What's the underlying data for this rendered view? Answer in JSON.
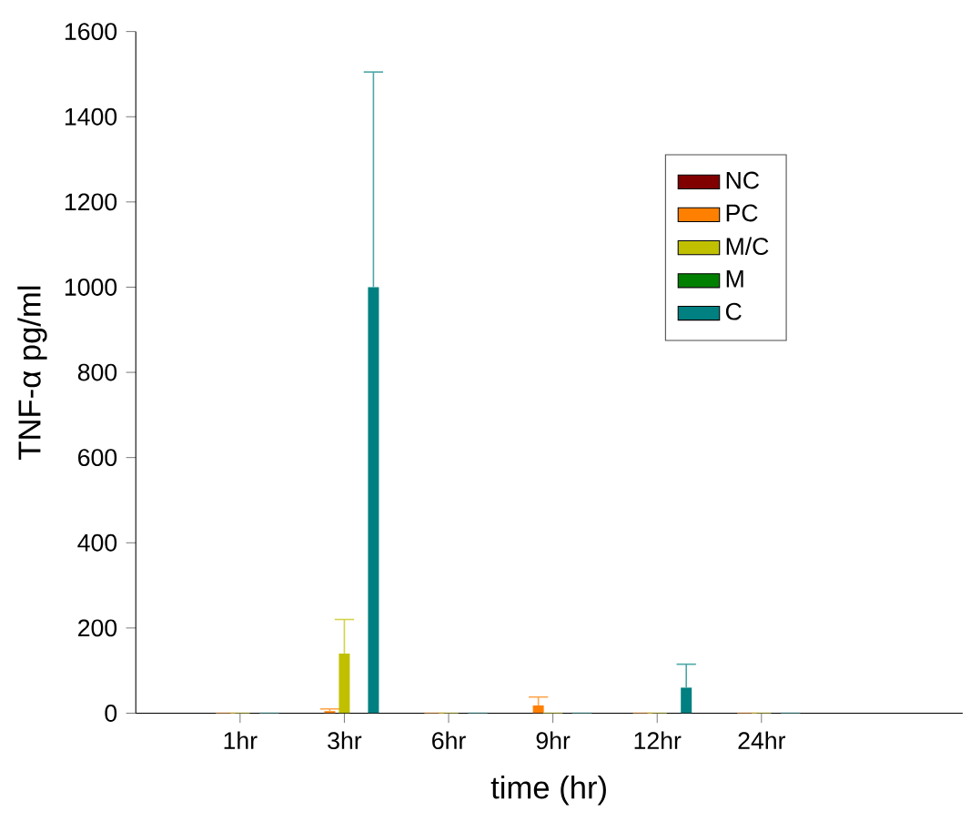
{
  "chart_data": {
    "type": "bar",
    "xlabel": "time (hr)",
    "ylabel": "TNF-α pg/ml",
    "categories": [
      "1hr",
      "3hr",
      "6hr",
      "9hr",
      "12hr",
      "24hr"
    ],
    "ylim": [
      0,
      1600
    ],
    "yticks": [
      0,
      200,
      400,
      600,
      800,
      1000,
      1200,
      1400,
      1600
    ],
    "legend": "top right",
    "grid": false,
    "series": [
      {
        "name": "NC",
        "color": "#800000",
        "values": [
          0,
          0,
          0,
          0,
          0,
          0
        ]
      },
      {
        "name": "PC",
        "color": "#ff8000",
        "values": [
          0,
          5,
          0,
          18,
          0,
          0
        ],
        "errors": [
          null,
          [
            5,
            10
          ],
          null,
          [
            18,
            38
          ],
          null,
          null
        ]
      },
      {
        "name": "M/C",
        "color": "#c0c000",
        "values": [
          0,
          140,
          0,
          0,
          0,
          0
        ],
        "errors": [
          null,
          [
            140,
            220
          ],
          null,
          null,
          null,
          null
        ]
      },
      {
        "name": "M",
        "color": "#008000",
        "values": [
          0,
          0,
          0,
          0,
          0,
          0
        ]
      },
      {
        "name": "C",
        "color": "#008080",
        "values": [
          0,
          1000,
          0,
          0,
          60,
          0
        ],
        "errors": [
          null,
          [
            1000,
            1505
          ],
          null,
          null,
          [
            60,
            115
          ],
          null
        ]
      }
    ]
  }
}
